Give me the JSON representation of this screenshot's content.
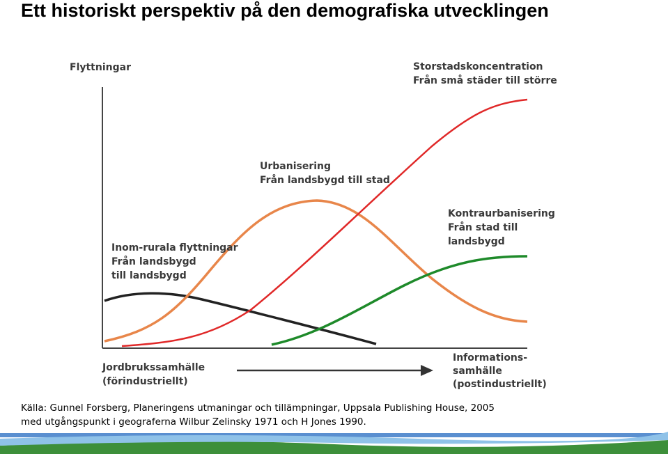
{
  "header": {
    "title": "Ett historiskt perspektiv på den demografiska utvecklingen"
  },
  "diagram": {
    "y_axis_label": "Flyttningar",
    "labels": [
      {
        "lines": [
          "Storstadskoncentration",
          "Från små städer till större"
        ]
      },
      {
        "lines": [
          "Urbanisering",
          "Från landsbygd till stad"
        ]
      },
      {
        "lines": [
          "Kontraurbanisering",
          "Från stad till",
          "landsbygd"
        ]
      },
      {
        "lines": [
          "Inom-rurala flyttningar",
          "Från landsbygd",
          "till landsbygd"
        ]
      }
    ],
    "start_stage": [
      "Jordbrukssamhälle",
      "(förindustriellt)"
    ],
    "end_stage": [
      "Informations-",
      "samhälle",
      "(postindustriellt)"
    ]
  },
  "source": [
    "Källa: Gunnel Forsberg, Planeringens utmaningar och tillämpningar, Uppsala Publishing House, 2005",
    "med utgångspunkt i geograferna Wilbur Zelinsky 1971 och H Jones 1990."
  ]
}
